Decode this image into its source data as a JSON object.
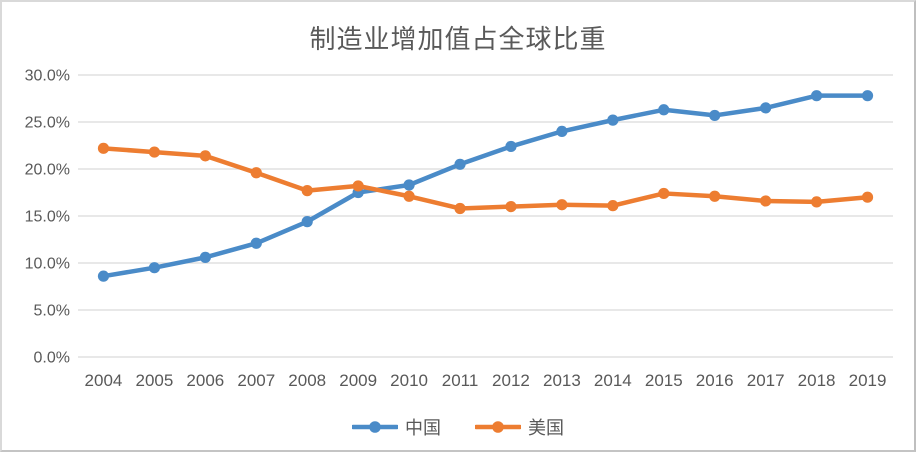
{
  "chart_data": {
    "type": "line",
    "title": "制造业增加值占全球比重",
    "categories": [
      "2004",
      "2005",
      "2006",
      "2007",
      "2008",
      "2009",
      "2010",
      "2011",
      "2012",
      "2013",
      "2014",
      "2015",
      "2016",
      "2017",
      "2018",
      "2019"
    ],
    "series": [
      {
        "name": "中国",
        "color": "#4A8BC8",
        "values": [
          8.6,
          9.5,
          10.6,
          12.1,
          14.4,
          17.5,
          18.3,
          20.5,
          22.4,
          24.0,
          25.2,
          26.3,
          25.7,
          26.5,
          27.8,
          27.8
        ]
      },
      {
        "name": "美国",
        "color": "#ED7D31",
        "values": [
          22.2,
          21.8,
          21.4,
          19.6,
          17.7,
          18.2,
          17.1,
          15.8,
          16.0,
          16.2,
          16.1,
          17.4,
          17.1,
          16.6,
          16.5,
          17.0
        ]
      }
    ],
    "xlabel": "",
    "ylabel": "",
    "ylim": [
      0,
      30
    ],
    "y_tick_step": 5,
    "y_tick_labels": [
      "0.0%",
      "5.0%",
      "10.0%",
      "15.0%",
      "20.0%",
      "25.0%",
      "30.0%"
    ],
    "grid": true,
    "legend_position": "bottom",
    "marker": "circle"
  },
  "style": {
    "grid_color": "#d9d9d9",
    "text_color": "#595959",
    "background": "#ffffff"
  }
}
